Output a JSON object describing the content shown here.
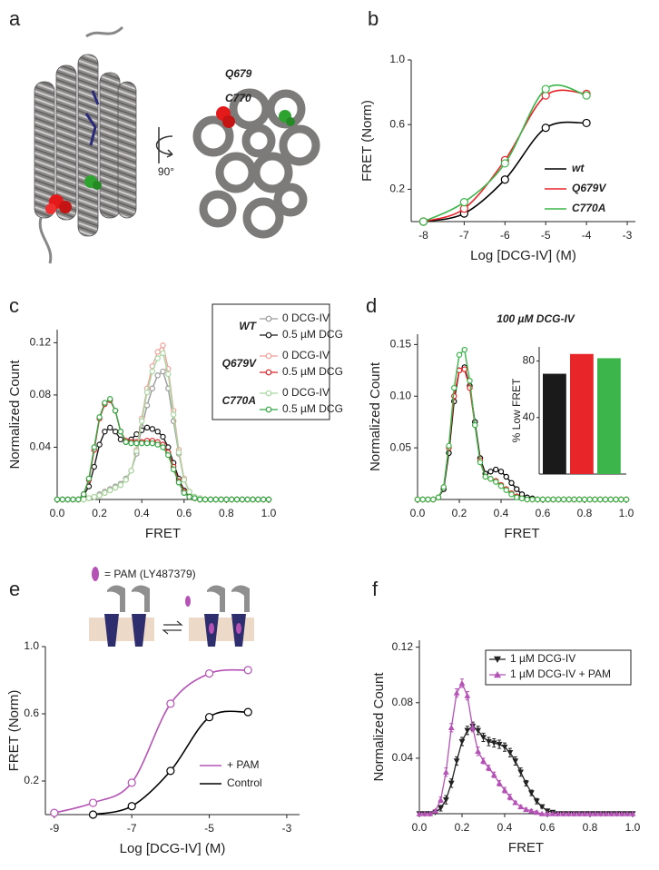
{
  "panel_labels": [
    "a",
    "b",
    "c",
    "d",
    "e",
    "f"
  ],
  "structure": {
    "residues": [
      {
        "label": "Q679",
        "color": "#e8262a"
      },
      {
        "label": "C770",
        "color": "#3cb64a"
      }
    ],
    "rotation": "90°"
  },
  "pam_key": "= PAM (LY487379)",
  "chart_data": [
    {
      "type": "line",
      "smooth": true,
      "x_label": "Log [DCG-IV] (M)",
      "y_label": "FRET (Norm)",
      "xlim": [
        -8.3,
        -2.8
      ],
      "xticks": [
        -8,
        -7,
        -6,
        -5,
        -4,
        -3
      ],
      "ylim": [
        0,
        1
      ],
      "yticks": [
        0.2,
        0.6,
        {
          "value": 1,
          "label": "1.0"
        }
      ],
      "x": [
        -8,
        -7,
        -6,
        -5,
        -4
      ],
      "series": [
        {
          "name": "wt",
          "color": "#000000",
          "values": [
            0,
            0.05,
            0.26,
            0.58,
            0.61
          ]
        },
        {
          "name": "Q679V",
          "color": "#e8262a",
          "values": [
            0,
            0.08,
            0.38,
            0.78,
            0.79
          ]
        },
        {
          "name": "C770A",
          "color": "#3cb64a",
          "values": [
            0,
            0.12,
            0.36,
            0.82,
            0.78
          ]
        }
      ]
    },
    {
      "type": "line",
      "x_label": "FRET",
      "y_label": "Normalized Count",
      "xlim": [
        0,
        1
      ],
      "xticks": [
        {
          "value": 0,
          "label": "0.0"
        },
        0.2,
        0.4,
        0.6,
        0.8,
        {
          "value": 1,
          "label": "1.0"
        }
      ],
      "ylim": [
        0,
        0.13
      ],
      "yticks": [
        0.04,
        0.08,
        0.12
      ],
      "x": [
        0,
        0.025,
        0.05,
        0.075,
        0.1,
        0.125,
        0.15,
        0.175,
        0.2,
        0.225,
        0.25,
        0.275,
        0.3,
        0.325,
        0.35,
        0.375,
        0.4,
        0.425,
        0.45,
        0.475,
        0.5,
        0.525,
        0.55,
        0.575,
        0.6,
        0.625,
        0.65,
        0.675,
        0.7,
        0.725,
        0.75,
        0.775,
        0.8,
        0.825,
        0.85,
        0.875,
        0.9,
        0.925,
        0.95,
        0.975,
        1
      ],
      "groups": [
        {
          "name": "WT",
          "color": "#000000",
          "series": [
            {
              "name": "0 DCG-IV",
              "color": "#9a9a9a",
              "values": [
                0,
                0,
                0,
                0,
                0,
                0,
                0.001,
                0.002,
                0.004,
                0.006,
                0.008,
                0.01,
                0.012,
                0.016,
                0.022,
                0.035,
                0.055,
                0.072,
                0.085,
                0.095,
                0.098,
                0.085,
                0.06,
                0.035,
                0.015,
                0.006,
                0.002,
                0.001,
                0,
                0,
                0,
                0,
                0,
                0,
                0,
                0,
                0,
                0,
                0,
                0,
                0
              ]
            },
            {
              "name": "0.5 µM DCG",
              "color": "#1a1a1a",
              "values": [
                0,
                0,
                0,
                0,
                0,
                0.003,
                0.01,
                0.025,
                0.042,
                0.052,
                0.055,
                0.052,
                0.046,
                0.044,
                0.046,
                0.05,
                0.053,
                0.055,
                0.054,
                0.052,
                0.048,
                0.04,
                0.028,
                0.016,
                0.007,
                0.003,
                0.001,
                0,
                0,
                0,
                0,
                0,
                0,
                0,
                0,
                0,
                0,
                0,
                0,
                0,
                0
              ]
            }
          ]
        },
        {
          "name": "Q679V",
          "color": "#e8262a",
          "series": [
            {
              "name": "0 DCG-IV",
              "color": "#f0a09a",
              "values": [
                0,
                0,
                0,
                0,
                0,
                0,
                0.001,
                0.002,
                0.003,
                0.005,
                0.007,
                0.009,
                0.011,
                0.015,
                0.022,
                0.038,
                0.062,
                0.085,
                0.102,
                0.113,
                0.118,
                0.1,
                0.068,
                0.038,
                0.016,
                0.006,
                0.002,
                0.001,
                0,
                0,
                0,
                0,
                0,
                0,
                0,
                0,
                0,
                0,
                0,
                0,
                0
              ]
            },
            {
              "name": "0.5 µM DCG",
              "color": "#d9262a",
              "values": [
                0,
                0,
                0,
                0,
                0,
                0.004,
                0.015,
                0.038,
                0.062,
                0.073,
                0.076,
                0.068,
                0.052,
                0.045,
                0.044,
                0.044,
                0.044,
                0.045,
                0.045,
                0.044,
                0.042,
                0.036,
                0.025,
                0.014,
                0.006,
                0.002,
                0.001,
                0,
                0,
                0,
                0,
                0,
                0,
                0,
                0,
                0,
                0,
                0,
                0,
                0,
                0
              ]
            }
          ]
        },
        {
          "name": "C770A",
          "color": "#3cb64a",
          "series": [
            {
              "name": "0 DCG-IV",
              "color": "#a8d8a0",
              "values": [
                0,
                0,
                0,
                0,
                0,
                0,
                0.001,
                0.002,
                0.003,
                0.005,
                0.007,
                0.009,
                0.011,
                0.015,
                0.022,
                0.037,
                0.06,
                0.082,
                0.098,
                0.108,
                0.112,
                0.096,
                0.065,
                0.036,
                0.015,
                0.006,
                0.002,
                0.001,
                0,
                0,
                0,
                0,
                0,
                0,
                0,
                0,
                0,
                0,
                0,
                0,
                0
              ]
            },
            {
              "name": "0.5 µM DCG",
              "color": "#34a844",
              "values": [
                0,
                0,
                0,
                0,
                0,
                0.004,
                0.016,
                0.04,
                0.063,
                0.074,
                0.077,
                0.068,
                0.052,
                0.044,
                0.043,
                0.043,
                0.043,
                0.043,
                0.043,
                0.042,
                0.04,
                0.034,
                0.023,
                0.013,
                0.005,
                0.002,
                0.001,
                0,
                0,
                0,
                0,
                0,
                0,
                0,
                0,
                0,
                0,
                0,
                0,
                0,
                0
              ]
            }
          ]
        }
      ]
    },
    {
      "type": "line",
      "title": "100 µM DCG-IV",
      "x_label": "FRET",
      "y_label": "Normalized Count",
      "xlim": [
        0,
        1
      ],
      "xticks": [
        {
          "value": 0,
          "label": "0.0"
        },
        0.2,
        0.4,
        0.6,
        0.8,
        {
          "value": 1,
          "label": "1.0"
        }
      ],
      "ylim": [
        0,
        0.16
      ],
      "yticks": [
        0.05,
        {
          "value": 0.1,
          "label": "0.10"
        },
        0.15
      ],
      "x": [
        0,
        0.025,
        0.05,
        0.075,
        0.1,
        0.125,
        0.15,
        0.175,
        0.2,
        0.225,
        0.25,
        0.275,
        0.3,
        0.325,
        0.35,
        0.375,
        0.4,
        0.425,
        0.45,
        0.475,
        0.5,
        0.525,
        0.55,
        0.575,
        0.6,
        0.625,
        0.65,
        0.675,
        0.7,
        0.725,
        0.75,
        0.775,
        0.8,
        0.825,
        0.85,
        0.875,
        0.9,
        0.925,
        0.95,
        0.975,
        1
      ],
      "series": [
        {
          "color": "#000000",
          "values": [
            0,
            0,
            0,
            0,
            0.002,
            0.01,
            0.045,
            0.095,
            0.125,
            0.128,
            0.11,
            0.075,
            0.04,
            0.025,
            0.027,
            0.029,
            0.027,
            0.022,
            0.016,
            0.01,
            0.005,
            0.002,
            0.001,
            0,
            0,
            0,
            0,
            0,
            0,
            0,
            0,
            0,
            0,
            0,
            0,
            0,
            0,
            0,
            0,
            0,
            0
          ]
        },
        {
          "color": "#e8262a",
          "values": [
            0,
            0,
            0,
            0,
            0.002,
            0.012,
            0.05,
            0.1,
            0.125,
            0.126,
            0.108,
            0.072,
            0.038,
            0.022,
            0.02,
            0.018,
            0.014,
            0.01,
            0.006,
            0.003,
            0.001,
            0,
            0,
            0,
            0,
            0,
            0,
            0,
            0,
            0,
            0,
            0,
            0,
            0,
            0,
            0,
            0,
            0,
            0,
            0,
            0
          ]
        },
        {
          "color": "#3cb64a",
          "values": [
            0,
            0,
            0,
            0,
            0.002,
            0.012,
            0.052,
            0.108,
            0.14,
            0.145,
            0.115,
            0.072,
            0.036,
            0.022,
            0.02,
            0.017,
            0.013,
            0.009,
            0.005,
            0.002,
            0.001,
            0,
            0,
            0,
            0,
            0,
            0,
            0,
            0,
            0,
            0,
            0,
            0,
            0,
            0,
            0,
            0,
            0,
            0,
            0,
            0
          ]
        }
      ],
      "inset": {
        "type": "bar",
        "y_label": "% Low FRET",
        "ylim": [
          0,
          90
        ],
        "yticks": [
          40,
          80
        ],
        "categories": [
          null,
          null,
          null
        ],
        "values": [
          71,
          85,
          82
        ],
        "colors": [
          "#1a1a1a",
          "#e8262a",
          "#3cb64a"
        ]
      }
    },
    {
      "type": "line",
      "smooth": true,
      "x_label": "Log [DCG-IV] (M)",
      "y_label": "FRET (Norm)",
      "xlim": [
        -9.23,
        -2.67
      ],
      "xticks": [
        -9,
        -7,
        -5,
        -3
      ],
      "ylim": [
        0,
        1
      ],
      "yticks": [
        0.2,
        0.6,
        {
          "value": 1,
          "label": "1.0"
        }
      ],
      "series": [
        {
          "name": "+ PAM",
          "color": "#b552b5",
          "x": [
            -9,
            -8,
            -7,
            -6,
            -5,
            -4
          ],
          "values": [
            0.01,
            0.07,
            0.19,
            0.66,
            0.84,
            0.86
          ]
        },
        {
          "name": "Control",
          "color": "#000000",
          "x": [
            -8,
            -7,
            -6,
            -5,
            -4
          ],
          "values": [
            0,
            0.05,
            0.26,
            0.58,
            0.61
          ]
        }
      ]
    },
    {
      "type": "line",
      "x_label": "FRET",
      "y_label": "Normalized Count",
      "xlim": [
        0,
        1
      ],
      "xticks": [
        {
          "value": 0,
          "label": "0.0"
        },
        0.2,
        0.4,
        0.6,
        0.8,
        {
          "value": 1,
          "label": "1.0"
        }
      ],
      "ylim": [
        0,
        0.125
      ],
      "yticks": [
        0.04,
        0.08,
        0.12
      ],
      "x": [
        0,
        0.025,
        0.05,
        0.075,
        0.1,
        0.125,
        0.15,
        0.175,
        0.2,
        0.225,
        0.25,
        0.275,
        0.3,
        0.325,
        0.35,
        0.375,
        0.4,
        0.425,
        0.45,
        0.475,
        0.5,
        0.525,
        0.55,
        0.575,
        0.6,
        0.625,
        0.65,
        0.675,
        0.7,
        0.725,
        0.75,
        0.775,
        0.8,
        0.825,
        0.85,
        0.875,
        0.9,
        0.925,
        0.95,
        0.975,
        1
      ],
      "series": [
        {
          "name": "1 µM DCG-IV",
          "color": "#222222",
          "marker": "triangle-down",
          "values": [
            0,
            0,
            0,
            0.001,
            0.004,
            0.01,
            0.022,
            0.038,
            0.052,
            0.06,
            0.063,
            0.06,
            0.055,
            0.052,
            0.051,
            0.05,
            0.048,
            0.044,
            0.038,
            0.03,
            0.022,
            0.015,
            0.009,
            0.005,
            0.002,
            0.001,
            0,
            0,
            0,
            0,
            0,
            0,
            0,
            0,
            0,
            0,
            0,
            0,
            0,
            0,
            0
          ],
          "errors": [
            0,
            0,
            0,
            0.001,
            0.002,
            0.003,
            0.003,
            0.003,
            0.003,
            0.003,
            0.003,
            0.003,
            0.003,
            0.003,
            0.003,
            0.003,
            0.003,
            0.003,
            0.003,
            0.003,
            0.002,
            0.002,
            0.002,
            0.001,
            0.001,
            0.001,
            0,
            0,
            0,
            0,
            0,
            0,
            0,
            0,
            0,
            0,
            0,
            0,
            0,
            0,
            0
          ]
        },
        {
          "name": "1 µM DCG-IV + PAM",
          "color": "#b552b5",
          "marker": "triangle-up",
          "values": [
            0,
            0,
            0,
            0.002,
            0.01,
            0.03,
            0.062,
            0.087,
            0.094,
            0.085,
            0.062,
            0.045,
            0.038,
            0.033,
            0.028,
            0.022,
            0.017,
            0.012,
            0.008,
            0.005,
            0.003,
            0.002,
            0.001,
            0,
            0,
            0,
            0,
            0,
            0,
            0,
            0,
            0,
            0,
            0,
            0,
            0,
            0,
            0,
            0,
            0,
            0
          ],
          "errors": [
            0,
            0,
            0,
            0.001,
            0.002,
            0.003,
            0.003,
            0.003,
            0.003,
            0.003,
            0.003,
            0.003,
            0.002,
            0.002,
            0.002,
            0.002,
            0.002,
            0.002,
            0.001,
            0.001,
            0.001,
            0.001,
            0.001,
            0,
            0,
            0,
            0,
            0,
            0,
            0,
            0,
            0,
            0,
            0,
            0,
            0,
            0,
            0,
            0,
            0,
            0
          ]
        }
      ]
    }
  ]
}
